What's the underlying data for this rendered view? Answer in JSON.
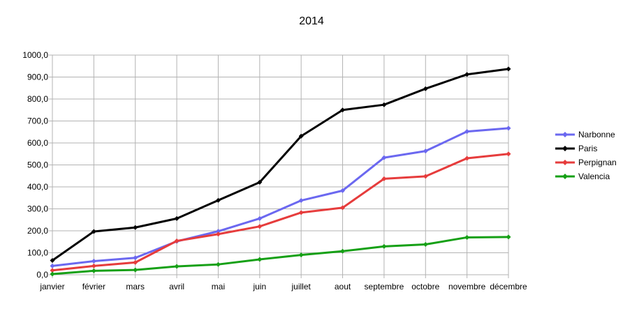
{
  "chart_data": {
    "type": "line",
    "title": "2014",
    "xlabel": "",
    "ylabel": "",
    "categories": [
      "janvier",
      "février",
      "mars",
      "avril",
      "mai",
      "juin",
      "juillet",
      "aout",
      "septembre",
      "octobre",
      "novembre",
      "décembre"
    ],
    "ylim": [
      0,
      1000
    ],
    "yticks": [
      "0,0",
      "100,0",
      "200,0",
      "300,0",
      "400,0",
      "500,0",
      "600,0",
      "700,0",
      "800,0",
      "900,0",
      "1000,0"
    ],
    "grid": true,
    "legend_position": "right",
    "series": [
      {
        "name": "Narbonne",
        "color": "#6b68f0",
        "values": [
          40,
          62,
          77,
          152,
          198,
          256,
          338,
          383,
          533,
          563,
          652,
          667
        ]
      },
      {
        "name": "Paris",
        "color": "#000000",
        "values": [
          65,
          197,
          215,
          256,
          339,
          421,
          631,
          750,
          774,
          847,
          912,
          937
        ]
      },
      {
        "name": "Perpignan",
        "color": "#e63c3c",
        "values": [
          20,
          40,
          56,
          154,
          185,
          220,
          283,
          305,
          437,
          448,
          530,
          550
        ]
      },
      {
        "name": "Valencia",
        "color": "#16a016",
        "values": [
          3,
          18,
          22,
          38,
          47,
          70,
          90,
          107,
          129,
          138,
          170,
          172
        ]
      }
    ]
  }
}
